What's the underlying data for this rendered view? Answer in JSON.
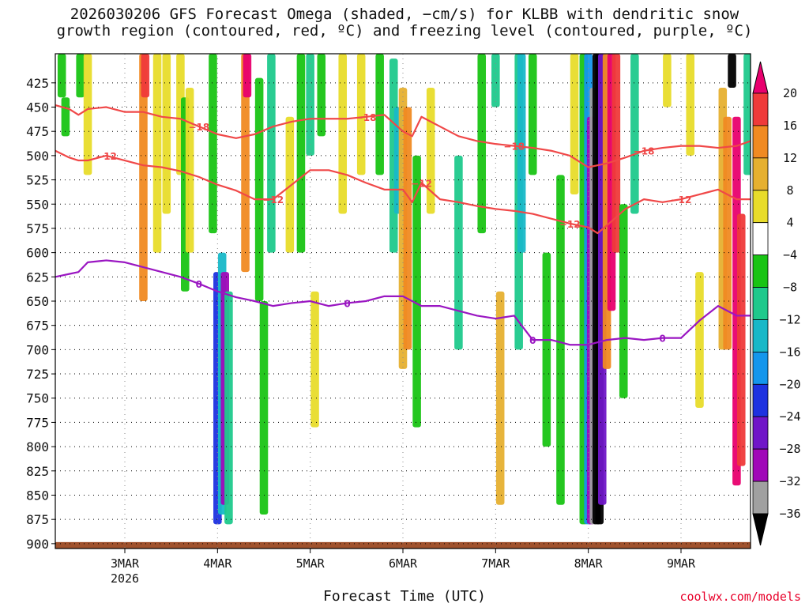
{
  "chart_data": {
    "type": "heatmap",
    "title": [
      "2026030206 GFS Forecast Omega (shaded, −cm/s) for KLBB with dendritic snow",
      "growth region (contoured, red, ºC) and freezing level (contoured, purple, ºC)"
    ],
    "xlabel": "Forecast Time (UTC)",
    "ylabel": "",
    "credit": "coolwx.com/models",
    "x_ticks": [
      "3MAR",
      "4MAR",
      "5MAR",
      "6MAR",
      "7MAR",
      "8MAR",
      "9MAR"
    ],
    "x_year": "2026",
    "x_range_days": [
      2.25,
      9.75
    ],
    "y_ticks": [
      425,
      450,
      475,
      500,
      525,
      550,
      575,
      600,
      625,
      650,
      675,
      700,
      725,
      750,
      775,
      800,
      825,
      850,
      875,
      900
    ],
    "y_range_hpa": [
      395,
      905
    ],
    "colorbar": {
      "ticks": [
        "20",
        "16",
        "12",
        "8",
        "4",
        "−4",
        "−8",
        "−12",
        "−16",
        "−20",
        "−24",
        "−28",
        "−32",
        "−36"
      ],
      "colors": [
        "#e8006e",
        "#ef3a3a",
        "#f08a22",
        "#e6b030",
        "#e8dc2a",
        "#ffffff",
        "#19c414",
        "#1fc98c",
        "#18b8c8",
        "#1496ec",
        "#1e32e0",
        "#7016c8",
        "#a008b8",
        "#a0a0a0",
        "#000000"
      ]
    },
    "omega_bands": [
      {
        "t": 2.32,
        "p1": 395,
        "p2": 440,
        "v": -6
      },
      {
        "t": 2.36,
        "p1": 440,
        "p2": 480,
        "v": -6
      },
      {
        "t": 2.52,
        "p1": 395,
        "p2": 440,
        "v": -6
      },
      {
        "t": 2.6,
        "p1": 395,
        "p2": 520,
        "v": 4
      },
      {
        "t": 3.2,
        "p1": 395,
        "p2": 650,
        "v": 12
      },
      {
        "t": 3.22,
        "p1": 395,
        "p2": 440,
        "v": 16
      },
      {
        "t": 3.35,
        "p1": 395,
        "p2": 600,
        "v": 6
      },
      {
        "t": 3.45,
        "p1": 395,
        "p2": 560,
        "v": 5
      },
      {
        "t": 3.6,
        "p1": 395,
        "p2": 520,
        "v": 4
      },
      {
        "t": 3.65,
        "p1": 440,
        "p2": 640,
        "v": -6
      },
      {
        "t": 3.7,
        "p1": 430,
        "p2": 600,
        "v": 5
      },
      {
        "t": 3.95,
        "p1": 395,
        "p2": 580,
        "v": -6
      },
      {
        "t": 4.0,
        "p1": 620,
        "p2": 880,
        "v": -22
      },
      {
        "t": 4.05,
        "p1": 600,
        "p2": 870,
        "v": -14
      },
      {
        "t": 4.08,
        "p1": 620,
        "p2": 860,
        "v": -30
      },
      {
        "t": 4.12,
        "p1": 640,
        "p2": 880,
        "v": -8
      },
      {
        "t": 4.3,
        "p1": 395,
        "p2": 620,
        "v": 14
      },
      {
        "t": 4.32,
        "p1": 395,
        "p2": 440,
        "v": 20
      },
      {
        "t": 4.45,
        "p1": 420,
        "p2": 650,
        "v": -6
      },
      {
        "t": 4.5,
        "p1": 650,
        "p2": 870,
        "v": -6
      },
      {
        "t": 4.58,
        "p1": 395,
        "p2": 600,
        "v": -8
      },
      {
        "t": 4.78,
        "p1": 460,
        "p2": 600,
        "v": 6
      },
      {
        "t": 4.9,
        "p1": 395,
        "p2": 600,
        "v": -6
      },
      {
        "t": 5.0,
        "p1": 395,
        "p2": 500,
        "v": -8
      },
      {
        "t": 5.05,
        "p1": 640,
        "p2": 780,
        "v": 6
      },
      {
        "t": 5.12,
        "p1": 395,
        "p2": 480,
        "v": -6
      },
      {
        "t": 5.35,
        "p1": 395,
        "p2": 560,
        "v": 4
      },
      {
        "t": 5.55,
        "p1": 395,
        "p2": 520,
        "v": 4
      },
      {
        "t": 5.75,
        "p1": 395,
        "p2": 520,
        "v": -6
      },
      {
        "t": 5.9,
        "p1": 400,
        "p2": 600,
        "v": -8
      },
      {
        "t": 5.95,
        "p1": 450,
        "p2": 560,
        "v": -14
      },
      {
        "t": 6.0,
        "p1": 430,
        "p2": 720,
        "v": 10
      },
      {
        "t": 6.05,
        "p1": 450,
        "p2": 700,
        "v": 14
      },
      {
        "t": 6.15,
        "p1": 500,
        "p2": 780,
        "v": -6
      },
      {
        "t": 6.3,
        "p1": 430,
        "p2": 560,
        "v": 6
      },
      {
        "t": 6.6,
        "p1": 500,
        "p2": 700,
        "v": -8
      },
      {
        "t": 6.85,
        "p1": 395,
        "p2": 580,
        "v": -6
      },
      {
        "t": 7.0,
        "p1": 395,
        "p2": 450,
        "v": -10
      },
      {
        "t": 7.05,
        "p1": 640,
        "p2": 860,
        "v": 10
      },
      {
        "t": 7.25,
        "p1": 395,
        "p2": 700,
        "v": -10
      },
      {
        "t": 7.28,
        "p1": 395,
        "p2": 600,
        "v": -14
      },
      {
        "t": 7.4,
        "p1": 395,
        "p2": 520,
        "v": -6
      },
      {
        "t": 7.55,
        "p1": 600,
        "p2": 800,
        "v": -6
      },
      {
        "t": 7.7,
        "p1": 520,
        "p2": 860,
        "v": -6
      },
      {
        "t": 7.85,
        "p1": 395,
        "p2": 540,
        "v": 6
      },
      {
        "t": 7.95,
        "p1": 395,
        "p2": 880,
        "v": -6
      },
      {
        "t": 8.0,
        "p1": 395,
        "p2": 880,
        "v": -18
      },
      {
        "t": 8.03,
        "p1": 460,
        "p2": 880,
        "v": -28
      },
      {
        "t": 8.06,
        "p1": 430,
        "p2": 880,
        "v": -32
      },
      {
        "t": 8.09,
        "p1": 395,
        "p2": 880,
        "v": -40
      },
      {
        "t": 8.12,
        "p1": 395,
        "p2": 880,
        "v": -40
      },
      {
        "t": 8.15,
        "p1": 395,
        "p2": 860,
        "v": -26
      },
      {
        "t": 8.2,
        "p1": 395,
        "p2": 720,
        "v": 14
      },
      {
        "t": 8.25,
        "p1": 395,
        "p2": 660,
        "v": 22
      },
      {
        "t": 8.3,
        "p1": 395,
        "p2": 600,
        "v": 18
      },
      {
        "t": 8.38,
        "p1": 550,
        "p2": 750,
        "v": -6
      },
      {
        "t": 8.5,
        "p1": 395,
        "p2": 560,
        "v": -8
      },
      {
        "t": 8.85,
        "p1": 395,
        "p2": 450,
        "v": 4
      },
      {
        "t": 9.1,
        "p1": 395,
        "p2": 500,
        "v": 4
      },
      {
        "t": 9.2,
        "p1": 620,
        "p2": 760,
        "v": 4
      },
      {
        "t": 9.45,
        "p1": 430,
        "p2": 700,
        "v": 8
      },
      {
        "t": 9.5,
        "p1": 460,
        "p2": 700,
        "v": 14
      },
      {
        "t": 9.55,
        "p1": 395,
        "p2": 430,
        "v": -40
      },
      {
        "t": 9.6,
        "p1": 460,
        "p2": 840,
        "v": 22
      },
      {
        "t": 9.65,
        "p1": 560,
        "p2": 820,
        "v": 18
      },
      {
        "t": 9.72,
        "p1": 395,
        "p2": 520,
        "v": -8
      }
    ],
    "contour_neg18": {
      "label": "−18",
      "x": [
        2.25,
        2.4,
        2.5,
        2.6,
        2.8,
        3.0,
        3.2,
        3.4,
        3.6,
        3.8,
        4.0,
        4.2,
        4.4,
        4.6,
        4.8,
        5.0,
        5.2,
        5.4,
        5.6,
        5.8,
        6.0,
        6.1,
        6.2,
        6.4,
        6.6,
        6.8,
        7.0,
        7.2,
        7.4,
        7.6,
        7.8,
        8.0,
        8.2,
        8.4,
        8.6,
        8.8,
        9.0,
        9.2,
        9.4,
        9.6,
        9.75
      ],
      "y": [
        448,
        452,
        458,
        452,
        450,
        455,
        455,
        460,
        462,
        470,
        478,
        482,
        478,
        470,
        465,
        462,
        462,
        462,
        460,
        458,
        475,
        480,
        460,
        470,
        480,
        485,
        488,
        490,
        492,
        495,
        500,
        512,
        508,
        502,
        495,
        492,
        490,
        490,
        492,
        490,
        485
      ]
    },
    "contour_neg12": {
      "label": "−12",
      "x": [
        2.25,
        2.4,
        2.5,
        2.6,
        2.8,
        3.0,
        3.2,
        3.4,
        3.6,
        3.8,
        4.0,
        4.2,
        4.4,
        4.6,
        4.8,
        5.0,
        5.2,
        5.4,
        5.6,
        5.8,
        6.0,
        6.1,
        6.2,
        6.4,
        6.6,
        6.8,
        7.0,
        7.2,
        7.4,
        7.6,
        7.8,
        8.0,
        8.1,
        8.2,
        8.4,
        8.6,
        8.8,
        9.0,
        9.2,
        9.4,
        9.6,
        9.75
      ],
      "y": [
        495,
        502,
        505,
        505,
        500,
        505,
        510,
        512,
        516,
        522,
        530,
        536,
        545,
        545,
        530,
        515,
        515,
        520,
        528,
        535,
        535,
        548,
        528,
        545,
        548,
        552,
        555,
        557,
        560,
        565,
        570,
        574,
        580,
        572,
        555,
        545,
        548,
        545,
        540,
        535,
        545,
        545
      ]
    },
    "contour_0": {
      "label": "0",
      "x": [
        2.25,
        2.4,
        2.5,
        2.6,
        2.8,
        3.0,
        3.2,
        3.4,
        3.6,
        3.8,
        4.0,
        4.2,
        4.4,
        4.6,
        4.8,
        5.0,
        5.2,
        5.4,
        5.6,
        5.8,
        6.0,
        6.2,
        6.4,
        6.6,
        6.8,
        7.0,
        7.2,
        7.4,
        7.6,
        7.8,
        8.0,
        8.2,
        8.4,
        8.6,
        8.8,
        9.0,
        9.2,
        9.4,
        9.6,
        9.75
      ],
      "y": [
        625,
        622,
        620,
        610,
        608,
        610,
        615,
        620,
        625,
        632,
        640,
        646,
        650,
        655,
        652,
        650,
        655,
        652,
        650,
        645,
        645,
        655,
        655,
        660,
        665,
        668,
        665,
        690,
        690,
        695,
        695,
        690,
        688,
        690,
        688,
        688,
        670,
        655,
        665,
        665
      ]
    },
    "ground_surface_hpa": 900
  }
}
